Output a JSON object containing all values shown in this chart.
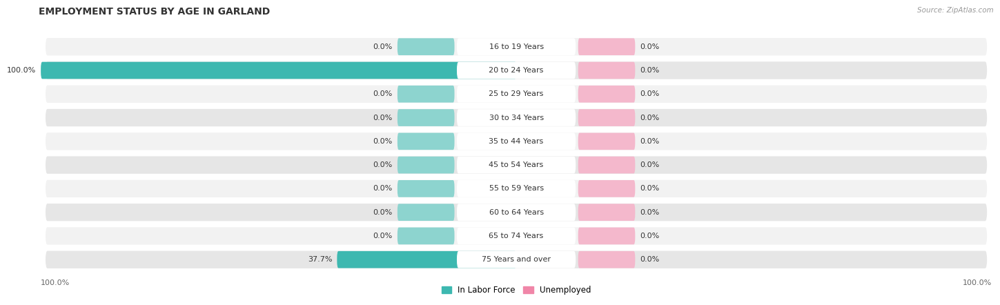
{
  "title": "EMPLOYMENT STATUS BY AGE IN GARLAND",
  "source": "Source: ZipAtlas.com",
  "categories": [
    "16 to 19 Years",
    "20 to 24 Years",
    "25 to 29 Years",
    "30 to 34 Years",
    "35 to 44 Years",
    "45 to 54 Years",
    "55 to 59 Years",
    "60 to 64 Years",
    "65 to 74 Years",
    "75 Years and over"
  ],
  "labor_force": [
    0.0,
    100.0,
    0.0,
    0.0,
    0.0,
    0.0,
    0.0,
    0.0,
    0.0,
    37.7
  ],
  "unemployed": [
    0.0,
    0.0,
    0.0,
    0.0,
    0.0,
    0.0,
    0.0,
    0.0,
    0.0,
    0.0
  ],
  "labor_force_color": "#3db8b0",
  "labor_force_light": "#8dd4cf",
  "unemployed_color": "#f086a8",
  "unemployed_light": "#f4b8cc",
  "row_bg_light": "#f2f2f2",
  "row_bg_dark": "#e6e6e6",
  "title_fontsize": 10,
  "label_fontsize": 8,
  "xlim": [
    -100,
    100
  ],
  "figsize": [
    14.06,
    4.51
  ],
  "dpi": 100
}
